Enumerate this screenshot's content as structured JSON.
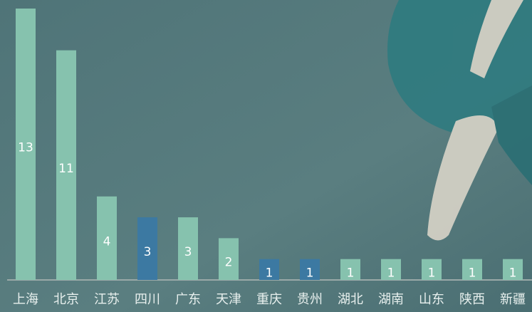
{
  "chart_data": {
    "type": "bar",
    "categories": [
      "上海",
      "北京",
      "江苏",
      "四川",
      "广东",
      "天津",
      "重庆",
      "贵州",
      "湖北",
      "湖南",
      "山东",
      "陕西",
      "新疆"
    ],
    "values": [
      13,
      11,
      4,
      3,
      3,
      2,
      1,
      1,
      1,
      1,
      1,
      1,
      1
    ],
    "colors": [
      "#86c2ae",
      "#86c2ae",
      "#86c2ae",
      "#3c79a2",
      "#86c2ae",
      "#86c2ae",
      "#3c79a2",
      "#3c79a2",
      "#86c2ae",
      "#86c2ae",
      "#86c2ae",
      "#86c2ae",
      "#86c2ae"
    ],
    "ylim": [
      0,
      13
    ]
  }
}
